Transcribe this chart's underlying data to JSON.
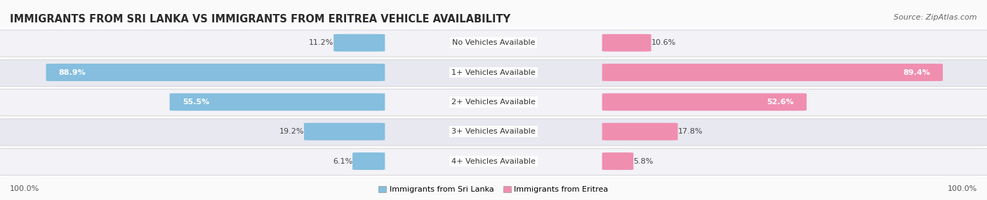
{
  "title": "IMMIGRANTS FROM SRI LANKA VS IMMIGRANTS FROM ERITREA VEHICLE AVAILABILITY",
  "source": "Source: ZipAtlas.com",
  "categories": [
    "No Vehicles Available",
    "1+ Vehicles Available",
    "2+ Vehicles Available",
    "3+ Vehicles Available",
    "4+ Vehicles Available"
  ],
  "sri_lanka_values": [
    11.2,
    88.9,
    55.5,
    19.2,
    6.1
  ],
  "eritrea_values": [
    10.6,
    89.4,
    52.6,
    17.8,
    5.8
  ],
  "sri_lanka_color": "#85BEDE",
  "eritrea_color": "#F08EB0",
  "sri_lanka_label": "Immigrants from Sri Lanka",
  "eritrea_label": "Immigrants from Eritrea",
  "row_bg_light": "#F2F2F7",
  "row_bg_dark": "#E8E8F0",
  "outer_bg": "#FAFAFA",
  "max_value": 100.0,
  "title_fontsize": 10.5,
  "source_fontsize": 8,
  "label_fontsize": 8,
  "value_fontsize": 8,
  "footer_fontsize": 8,
  "legend_fontsize": 8
}
